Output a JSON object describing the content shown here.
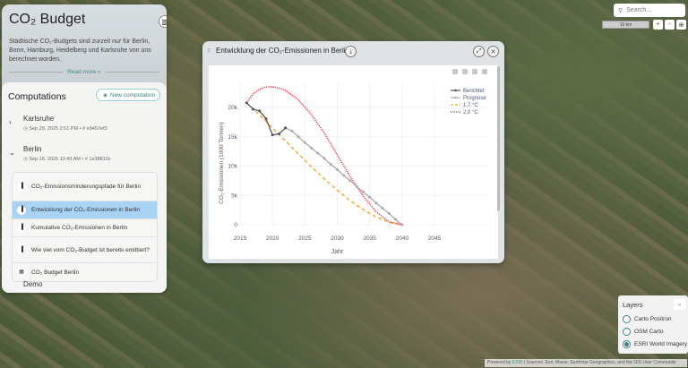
{
  "panel": {
    "title": "CO₂ Budget",
    "description": "Städtische CO₂-Budgets sind zurzeit nur für Berlin, Bonn, Hamburg, Heidelberg und Karlsruhe von uns berechnet worden.",
    "read_more": "Read more »"
  },
  "computations": {
    "title": "Computations",
    "new_button": "New computation",
    "cities": [
      {
        "name": "Karlsruhe",
        "date": "Sep 29, 2025 2:51 PM",
        "hash": "e9457ef3",
        "expanded": false
      },
      {
        "name": "Berlin",
        "date": "Sep 18, 2025 10:43 AM",
        "hash": "1e38810c",
        "expanded": true
      },
      {
        "name": "Demo"
      }
    ],
    "berlin_items": [
      {
        "label": "CO₂-Emissionsminderungspfade für Berlin",
        "icon": "bar-chart-icon",
        "selected": false
      },
      {
        "label": "Entwicklung der CO₂-Emissionen in Berlin",
        "icon": "bar-chart-icon",
        "selected": true
      },
      {
        "label": "Kumulative CO₂-Emissionen in Berlin",
        "icon": "bar-chart-icon",
        "selected": false
      },
      {
        "label": "Wie viel vom CO₂-Budget ist bereits emittiert?",
        "icon": "bar-chart-icon",
        "selected": false
      },
      {
        "label": "CO₂ Budget Berlin",
        "icon": "table-icon",
        "selected": false
      }
    ]
  },
  "modal": {
    "title": "Entwicklung der CO₂-Emissionen in Berlin"
  },
  "map": {
    "search_placeholder": "Search...",
    "scale": "10 km",
    "zoom_in": "+",
    "zoom_out": "-",
    "layers": {
      "title": "Layers",
      "options": [
        {
          "label": "Carto Positron",
          "selected": false
        },
        {
          "label": "OSM Carto",
          "selected": false
        },
        {
          "label": "ESRI World Imagery",
          "selected": true
        }
      ]
    },
    "attribution_prefix": "Powered by ",
    "attribution_link": "ESRI",
    "attribution_rest": " | Sources: Esri, Maxar, Earthstar Geographics, and the GIS User Community"
  },
  "chart_data": {
    "type": "line",
    "xlabel": "Jahr",
    "ylabel": "CO₂-Emissionen (1000 Tonnen)",
    "xlim": [
      2015,
      2046
    ],
    "ylim": [
      -1000,
      25000
    ],
    "xticks": [
      2015,
      2020,
      2025,
      2030,
      2035,
      2040,
      2045
    ],
    "xtick_labels": [
      "2015",
      "2020",
      "2025",
      "2030",
      "2035",
      "2040",
      "2045"
    ],
    "yticks": [
      0,
      5000,
      10000,
      15000,
      20000
    ],
    "ytick_labels": [
      "0",
      "5k",
      "10k",
      "15k",
      "20k"
    ],
    "legend_position": "top-right",
    "series": [
      {
        "name": "Berichtet",
        "color": "#555555",
        "style": "solid-markers",
        "x": [
          2016,
          2017,
          2018,
          2019,
          2020,
          2021,
          2022
        ],
        "y": [
          20800,
          19700,
          19400,
          18100,
          15300,
          15500,
          16500
        ]
      },
      {
        "name": "Prognose",
        "color": "#aaaaaa",
        "style": "solid-markers",
        "x": [
          2022,
          2023,
          2024,
          2025,
          2026,
          2027,
          2028,
          2029,
          2030,
          2031,
          2032,
          2033,
          2034,
          2035,
          2036,
          2037,
          2038,
          2039,
          2040
        ],
        "y": [
          16500,
          16000,
          15000,
          14000,
          13100,
          12200,
          11300,
          10300,
          9400,
          8400,
          7500,
          6500,
          5600,
          4700,
          3700,
          2800,
          1900,
          900,
          0
        ]
      },
      {
        "name": "1,7 °C",
        "color": "#f5a623",
        "style": "dash",
        "x": [
          2016,
          2018,
          2020,
          2022,
          2024,
          2026,
          2028,
          2030,
          2032,
          2034,
          2036,
          2038,
          2040
        ],
        "y": [
          20800,
          18700,
          16500,
          14300,
          12100,
          9900,
          7800,
          5900,
          4100,
          2600,
          1300,
          400,
          0
        ]
      },
      {
        "name": "2,0 °C",
        "color": "#ee2233",
        "style": "dot",
        "x": [
          2016,
          2017,
          2018,
          2019,
          2020,
          2021,
          2022,
          2024,
          2026,
          2028,
          2030,
          2032,
          2034,
          2036,
          2038,
          2040
        ],
        "y": [
          20800,
          22300,
          23100,
          23500,
          23500,
          23300,
          22900,
          21300,
          18800,
          15600,
          11900,
          8200,
          4900,
          2200,
          500,
          0
        ]
      }
    ]
  }
}
